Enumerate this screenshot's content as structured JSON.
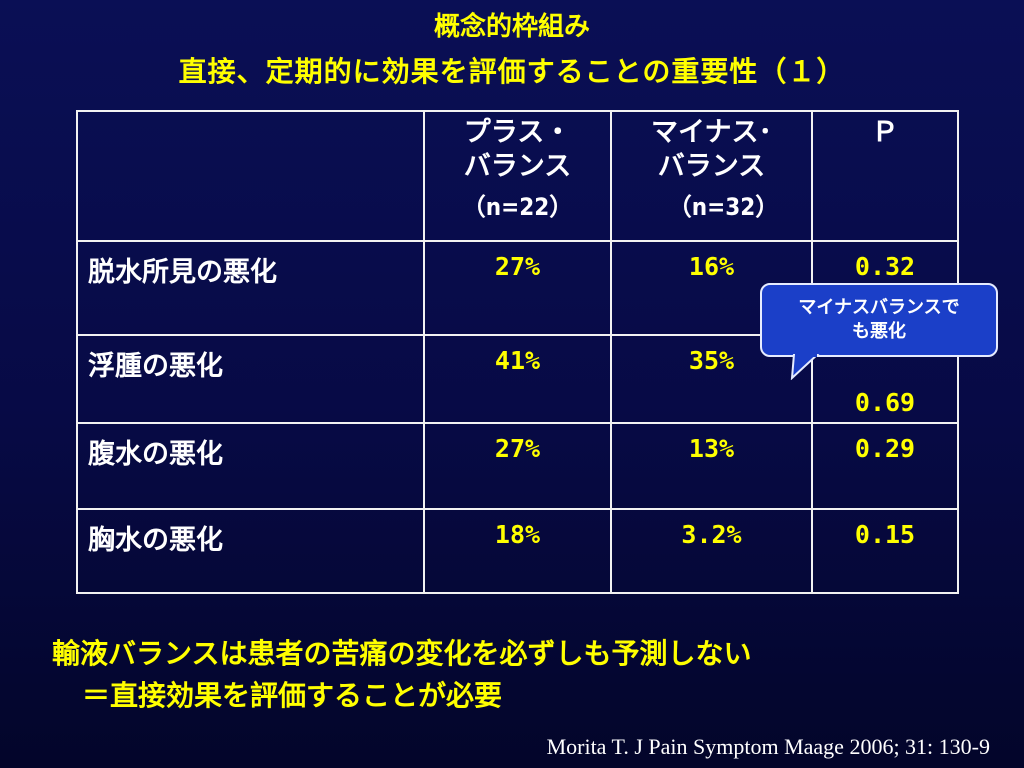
{
  "slide": {
    "title": "概念的枠組み",
    "subtitle": "直接、定期的に効果を評価することの重要性（１）"
  },
  "table": {
    "headers": [
      {
        "line1": "",
        "line2": "",
        "n": ""
      },
      {
        "line1": "プラス・",
        "line2": "バランス",
        "n": "（n=22）"
      },
      {
        "line1": "マイナス･",
        "line2": "バランス",
        "n": "（n=32）"
      },
      {
        "line1": "Ｐ",
        "line2": "",
        "n": ""
      }
    ],
    "rows": [
      {
        "label": "脱水所見の悪化",
        "plus": "27%",
        "minus": "16%",
        "p": "0.32"
      },
      {
        "label": "浮腫の悪化",
        "plus": "41%",
        "minus": "35%",
        "p": "0.69"
      },
      {
        "label": "腹水の悪化",
        "plus": "27%",
        "minus": "13%",
        "p": "0.29"
      },
      {
        "label": "胸水の悪化",
        "plus": "18%",
        "minus": "3.2%",
        "p": "0.15"
      }
    ]
  },
  "callout": {
    "line1": "マイナスバランスで",
    "line2": "も悪化"
  },
  "summary": {
    "line1": "輸液バランスは患者の苦痛の変化を必ずしも予測しない",
    "line2": "＝直接効果を評価することが必要"
  },
  "citation": "Morita T. J Pain Symptom Maage 2006; 31: 130-9",
  "colors": {
    "background": "#0a0f55",
    "accent_text": "#ffff00",
    "callout_fill": "#1b3fc8",
    "border": "#f2f2f2"
  }
}
